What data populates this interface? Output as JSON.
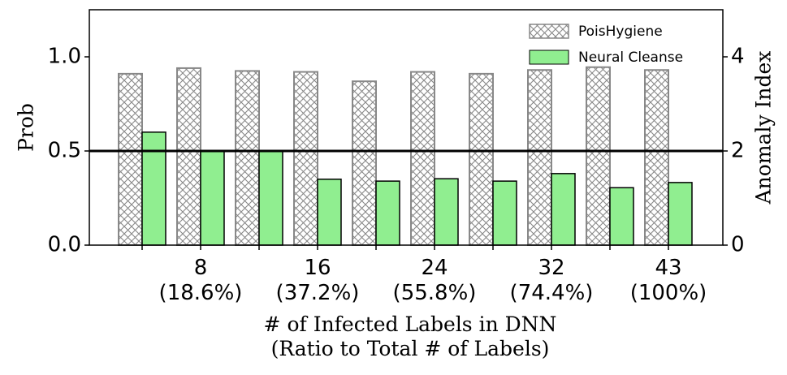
{
  "chart_data": {
    "type": "bar",
    "categories": [
      null,
      "8\n(18.6%)",
      null,
      "16\n(37.2%)",
      null,
      "24\n(55.8%)",
      null,
      "32\n(74.4%)",
      null,
      "43\n(100%)"
    ],
    "series": [
      {
        "name": "PoisHygiene",
        "color": "#888888",
        "hatch": "crosshatch",
        "values": [
          0.91,
          0.94,
          0.925,
          0.92,
          0.87,
          0.92,
          0.91,
          0.93,
          0.945,
          0.93
        ]
      },
      {
        "name": "Neural Cleanse",
        "color": "#90ee90",
        "axis": "y2",
        "values": [
          2.4,
          2.0,
          2.0,
          1.4,
          1.36,
          1.41,
          1.36,
          1.52,
          1.22,
          1.33
        ]
      }
    ],
    "ylabel": "Prob",
    "y2label": "Anomaly Index",
    "xlabel": "# of Infected Labels in DNN\n(Ratio to Total # of Labels)",
    "ylim": [
      0,
      1.25
    ],
    "yticks": [
      {
        "value": 0,
        "label": "0.0"
      },
      0.5,
      {
        "value": 1,
        "label": "1.0"
      }
    ],
    "y2lim": [
      0,
      5
    ],
    "y2ticks": [
      0,
      2,
      4
    ],
    "hline": 0.5,
    "legend": "upper right"
  }
}
